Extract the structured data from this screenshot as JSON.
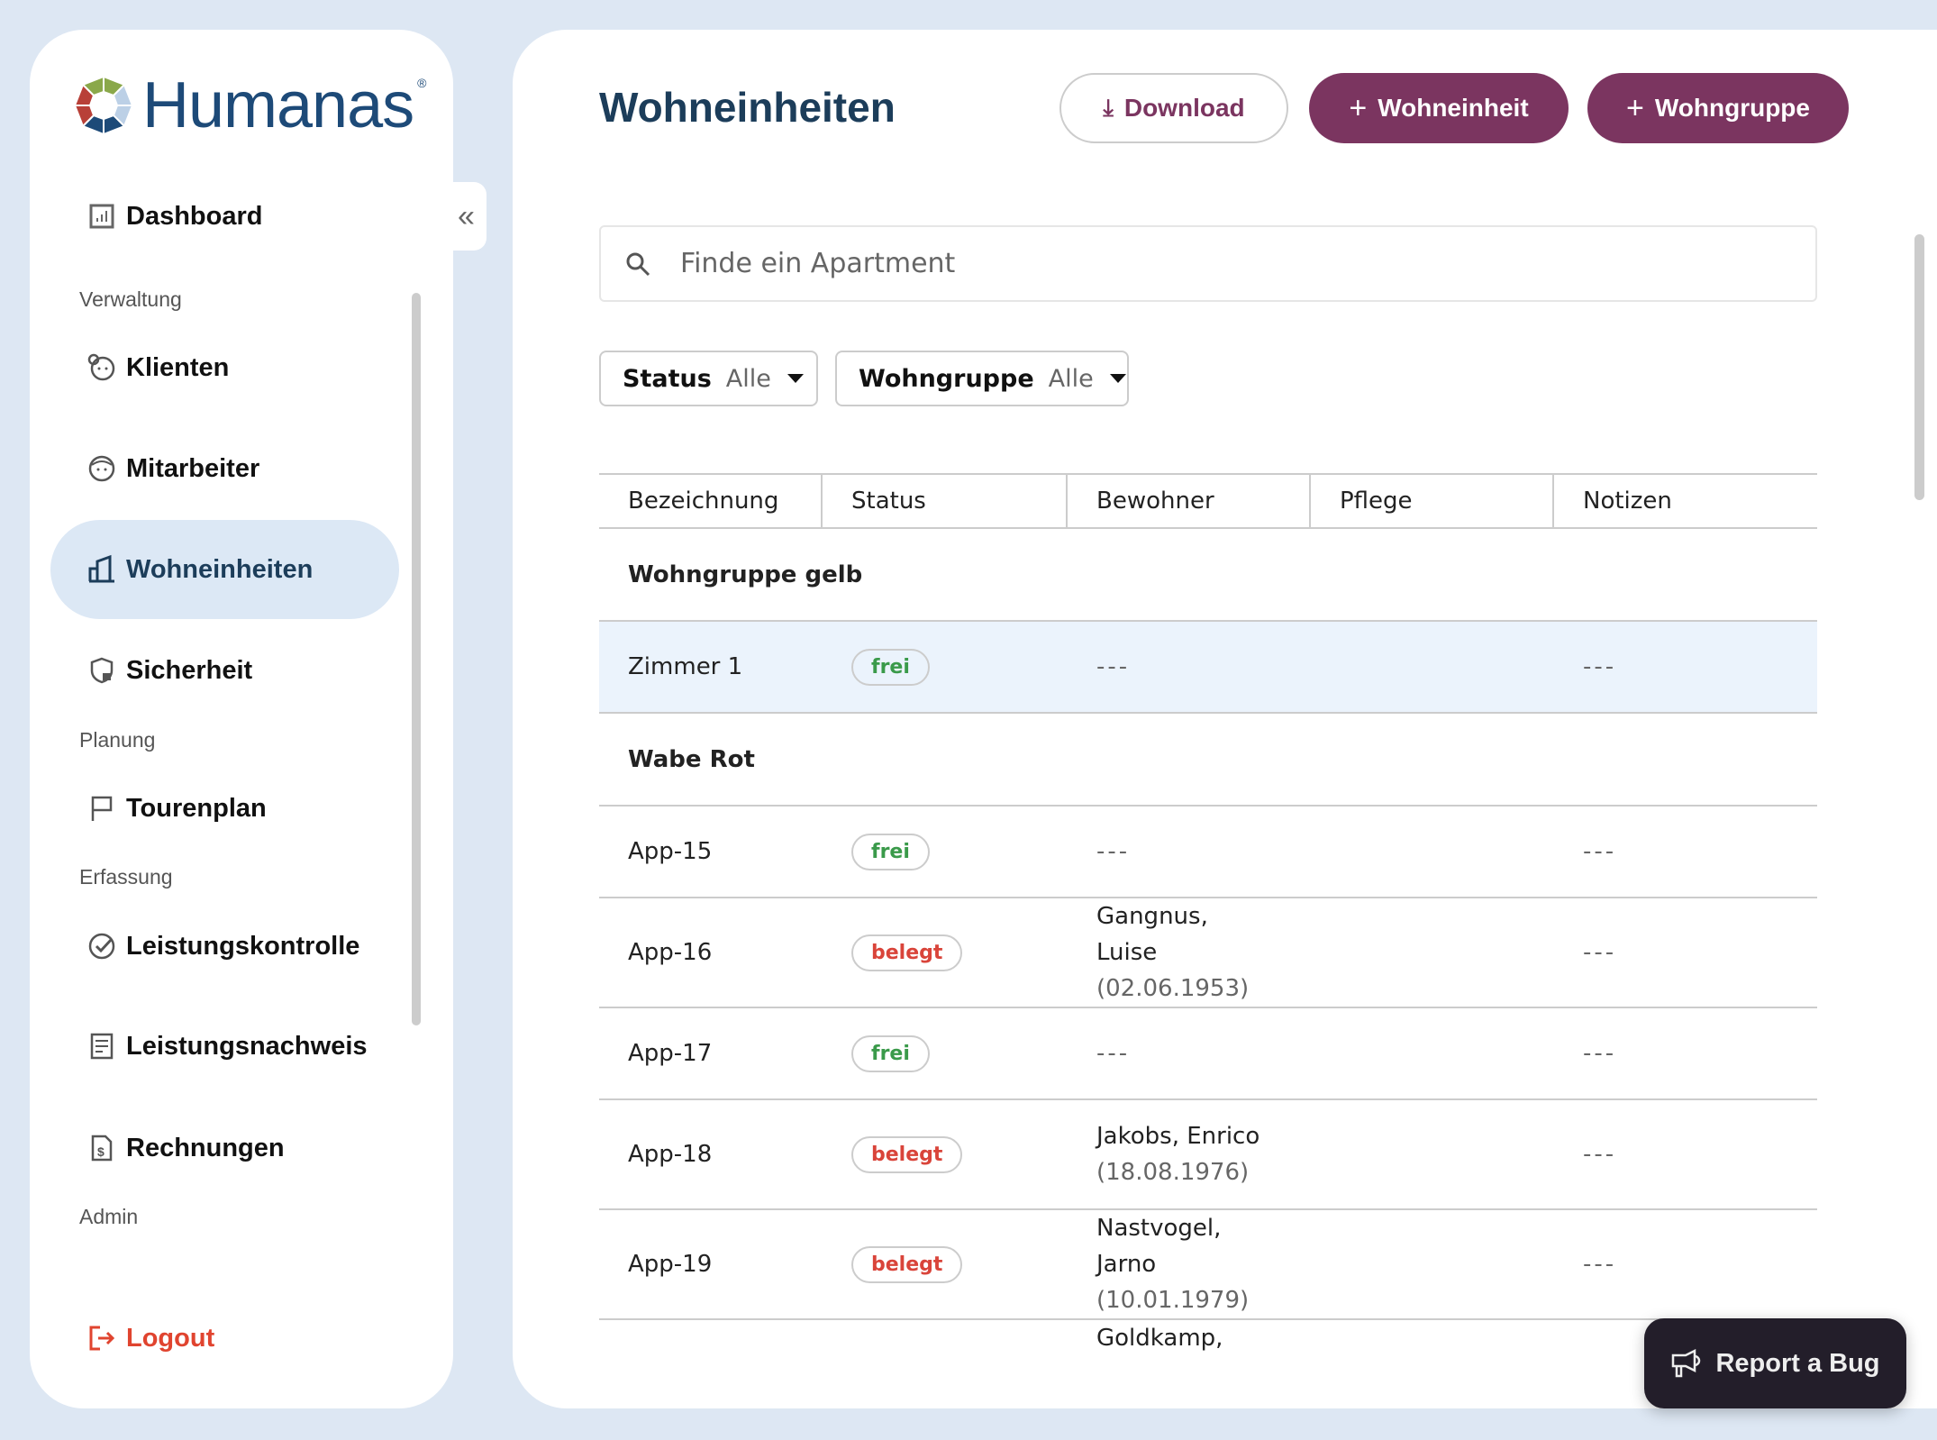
{
  "brand": {
    "name": "Humanas",
    "reg": "®"
  },
  "sidebar": {
    "dashboard": "Dashboard",
    "sections": {
      "verwaltung": "Verwaltung",
      "planung": "Planung",
      "erfassung": "Erfassung",
      "admin": "Admin"
    },
    "items": {
      "klienten": "Klienten",
      "mitarbeiter": "Mitarbeiter",
      "wohneinheiten": "Wohneinheiten",
      "sicherheit": "Sicherheit",
      "tourenplan": "Tourenplan",
      "leistungskontrolle": "Leistungskontrolle",
      "leistungsnachweis": "Leistungsnachweis",
      "rechnungen": "Rechnungen"
    },
    "logout": "Logout",
    "active": "Wohneinheiten"
  },
  "header": {
    "title": "Wohneinheiten",
    "download": "Download",
    "add_unit": "Wohneinheit",
    "add_group": "Wohngruppe"
  },
  "search": {
    "placeholder": "Finde ein Apartment"
  },
  "filters": {
    "status_label": "Status",
    "status_value": "Alle",
    "group_label": "Wohngruppe",
    "group_value": "Alle"
  },
  "table": {
    "columns": [
      "Bezeichnung",
      "Status",
      "Bewohner",
      "Pflege",
      "Notizen"
    ],
    "groups": [
      {
        "name": "Wohngruppe gelb",
        "rows": [
          {
            "name": "Zimmer 1",
            "status": "frei",
            "resident": "---",
            "resident_dob": "",
            "care": "",
            "notes": "---"
          }
        ]
      },
      {
        "name": "Wabe Rot",
        "rows": [
          {
            "name": "App-15",
            "status": "frei",
            "resident": "---",
            "resident_dob": "",
            "care": "",
            "notes": "---"
          },
          {
            "name": "App-16",
            "status": "belegt",
            "resident": "Gangnus, Luise",
            "resident_dob": "(02.06.1953)",
            "care": "",
            "notes": "---"
          },
          {
            "name": "App-17",
            "status": "frei",
            "resident": "---",
            "resident_dob": "",
            "care": "",
            "notes": "---"
          },
          {
            "name": "App-18",
            "status": "belegt",
            "resident": "Jakobs, Enrico",
            "resident_dob": "(18.08.1976)",
            "care": "",
            "notes": "---"
          },
          {
            "name": "App-19",
            "status": "belegt",
            "resident": "Nastvogel, Jarno",
            "resident_dob": "(10.01.1979)",
            "care": "",
            "notes": "---"
          },
          {
            "name": "",
            "status": "",
            "resident": "Goldkamp,",
            "resident_dob": "",
            "care": "",
            "notes": ""
          }
        ]
      }
    ]
  },
  "report_bug": "Report a Bug",
  "colors": {
    "accent": "#7b3560",
    "title": "#1c3d5a",
    "background": "#dde7f3",
    "free": "#3a9a4a",
    "occupied": "#d9443a"
  }
}
